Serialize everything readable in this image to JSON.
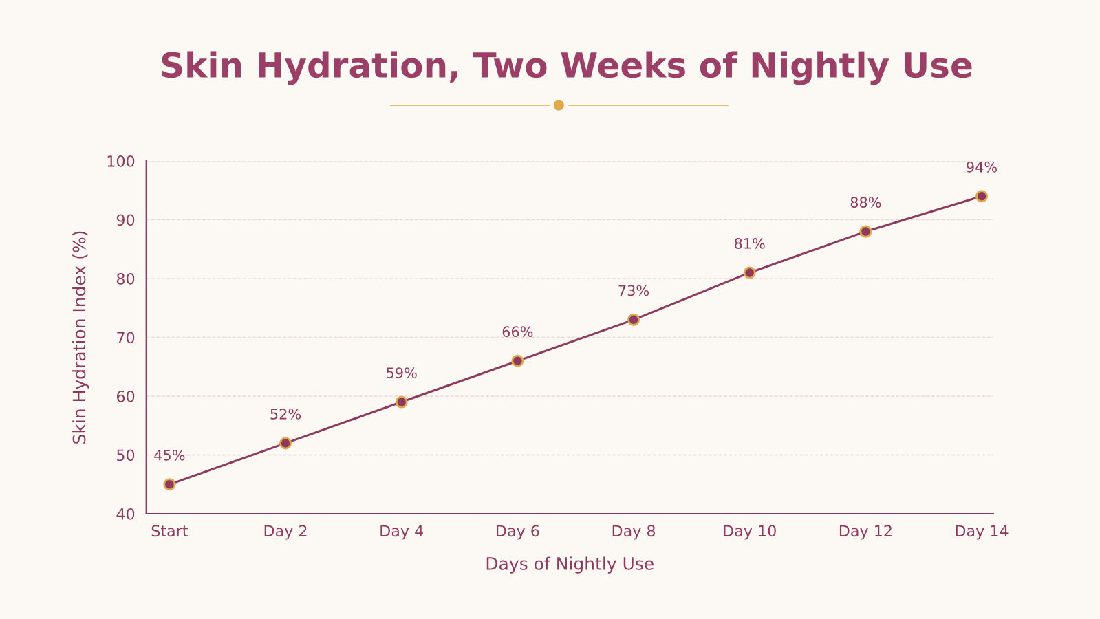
{
  "chart_data": {
    "type": "line",
    "title": "Skin Hydration, Two Weeks of Nightly Use",
    "xlabel": "Days of Nightly Use",
    "ylabel": "Skin Hydration Index (%)",
    "categories": [
      "Start",
      "Day 2",
      "Day 4",
      "Day 6",
      "Day 8",
      "Day 10",
      "Day 12",
      "Day 14"
    ],
    "series": [
      {
        "color": "#8e3a5f",
        "values": [
          45,
          52,
          59,
          66,
          73,
          81,
          88,
          94
        ],
        "value_labels": [
          "45%",
          "52%",
          "59%",
          "66%",
          "73%",
          "81%",
          "88%",
          "94%"
        ]
      }
    ],
    "ylim": [
      40,
      100
    ],
    "yticks": [
      40,
      50,
      60,
      70,
      80,
      90,
      100
    ],
    "grid": "y",
    "marker": "circle",
    "line_style": "solid",
    "legend": false
  }
}
